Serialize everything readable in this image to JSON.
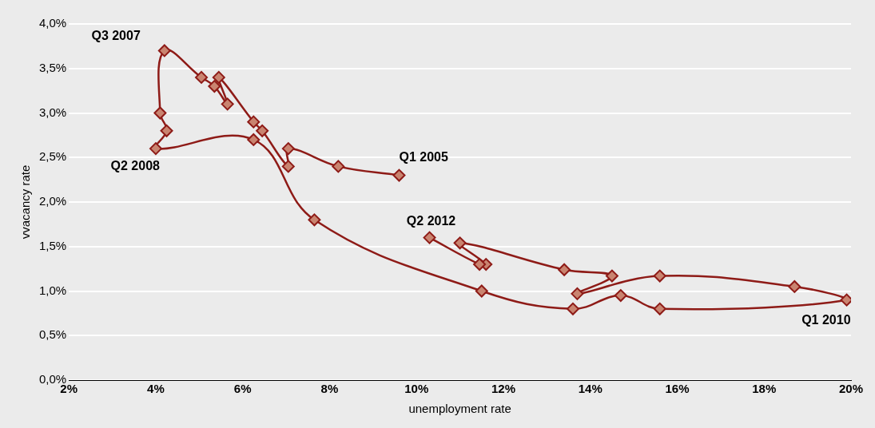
{
  "chart_data": {
    "type": "scatter",
    "xlabel": "unemployment rate",
    "ylabel": "vvacancy rate",
    "series": [
      {
        "type": "line",
        "color": "#8e1b17",
        "x": [
          9.6,
          8.2,
          7.05,
          7.05,
          6.45,
          6.25,
          5.45,
          5.65,
          5.35,
          5.05,
          4.2,
          4.1,
          4.25,
          4.0,
          6.25,
          7.65,
          11.5,
          13.6,
          14.7,
          15.6,
          19.9,
          18.7,
          15.6,
          13.7,
          14.5,
          13.4,
          11.0,
          11.6,
          11.45,
          10.3
        ],
        "values": [
          2.3,
          2.4,
          2.6,
          2.4,
          2.8,
          2.9,
          3.4,
          3.1,
          3.3,
          3.4,
          3.7,
          3.0,
          2.8,
          2.6,
          2.7,
          1.8,
          1.0,
          0.8,
          0.95,
          0.8,
          0.9,
          1.05,
          1.17,
          0.97,
          1.17,
          1.24,
          1.54,
          1.3,
          1.3,
          1.6
        ]
      }
    ],
    "xlim": [
      2,
      20
    ],
    "xticks": [
      {
        "value": 2,
        "label": "2%"
      },
      {
        "value": 4,
        "label": "4%"
      },
      {
        "value": 6,
        "label": "6%"
      },
      {
        "value": 8,
        "label": "8%"
      },
      {
        "value": 10,
        "label": "10%"
      },
      {
        "value": 12,
        "label": "12%"
      },
      {
        "value": 14,
        "label": "14%"
      },
      {
        "value": 16,
        "label": "16%"
      },
      {
        "value": 18,
        "label": "18%"
      },
      {
        "value": 20,
        "label": "20%"
      }
    ],
    "ylim": [
      0,
      4
    ],
    "yticks": [
      {
        "value": 0,
        "label": "0,0%"
      },
      {
        "value": 0.5,
        "label": "0,5%"
      },
      {
        "value": 1,
        "label": "1,0%"
      },
      {
        "value": 1.5,
        "label": "1,5%"
      },
      {
        "value": 2,
        "label": "2,0%"
      },
      {
        "value": 2.5,
        "label": "2,5%"
      },
      {
        "value": 3,
        "label": "3,0%"
      },
      {
        "value": 3.5,
        "label": "3,5%"
      },
      {
        "value": 4,
        "label": "4,0%"
      }
    ],
    "grid": "y",
    "marker": "diamond",
    "line_style": "solid",
    "legend": false,
    "annotations": [
      {
        "text": "Q1 2005",
        "x": 9.6,
        "y": 2.3
      },
      {
        "text": "Q3 2007",
        "x": 4.2,
        "y": 3.7
      },
      {
        "text": "Q2 2008",
        "x": 4.0,
        "y": 2.6
      },
      {
        "text": "Q1 2010",
        "x": 19.9,
        "y": 0.9
      },
      {
        "text": "Q2 2012",
        "x": 10.3,
        "y": 1.6
      }
    ]
  }
}
